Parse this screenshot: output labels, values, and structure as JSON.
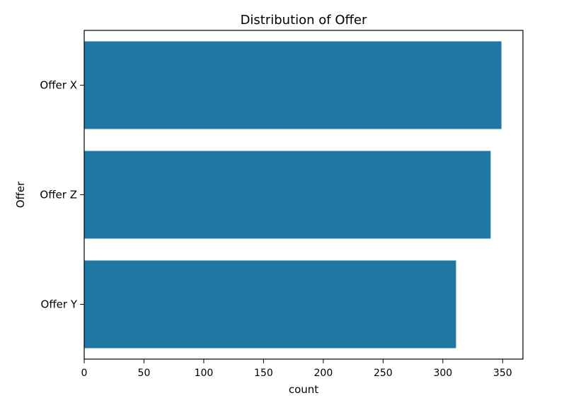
{
  "chart_data": {
    "type": "bar",
    "orientation": "horizontal",
    "title": "Distribution of Offer",
    "xlabel": "count",
    "ylabel": "Offer",
    "categories": [
      "Offer X",
      "Offer Z",
      "Offer Y"
    ],
    "values": [
      349,
      340,
      311
    ],
    "xlim": [
      0,
      367
    ],
    "xticks": [
      0,
      50,
      100,
      150,
      200,
      250,
      300,
      350
    ],
    "grid": false,
    "legend": "none",
    "bar_color": "#1f77a4"
  }
}
